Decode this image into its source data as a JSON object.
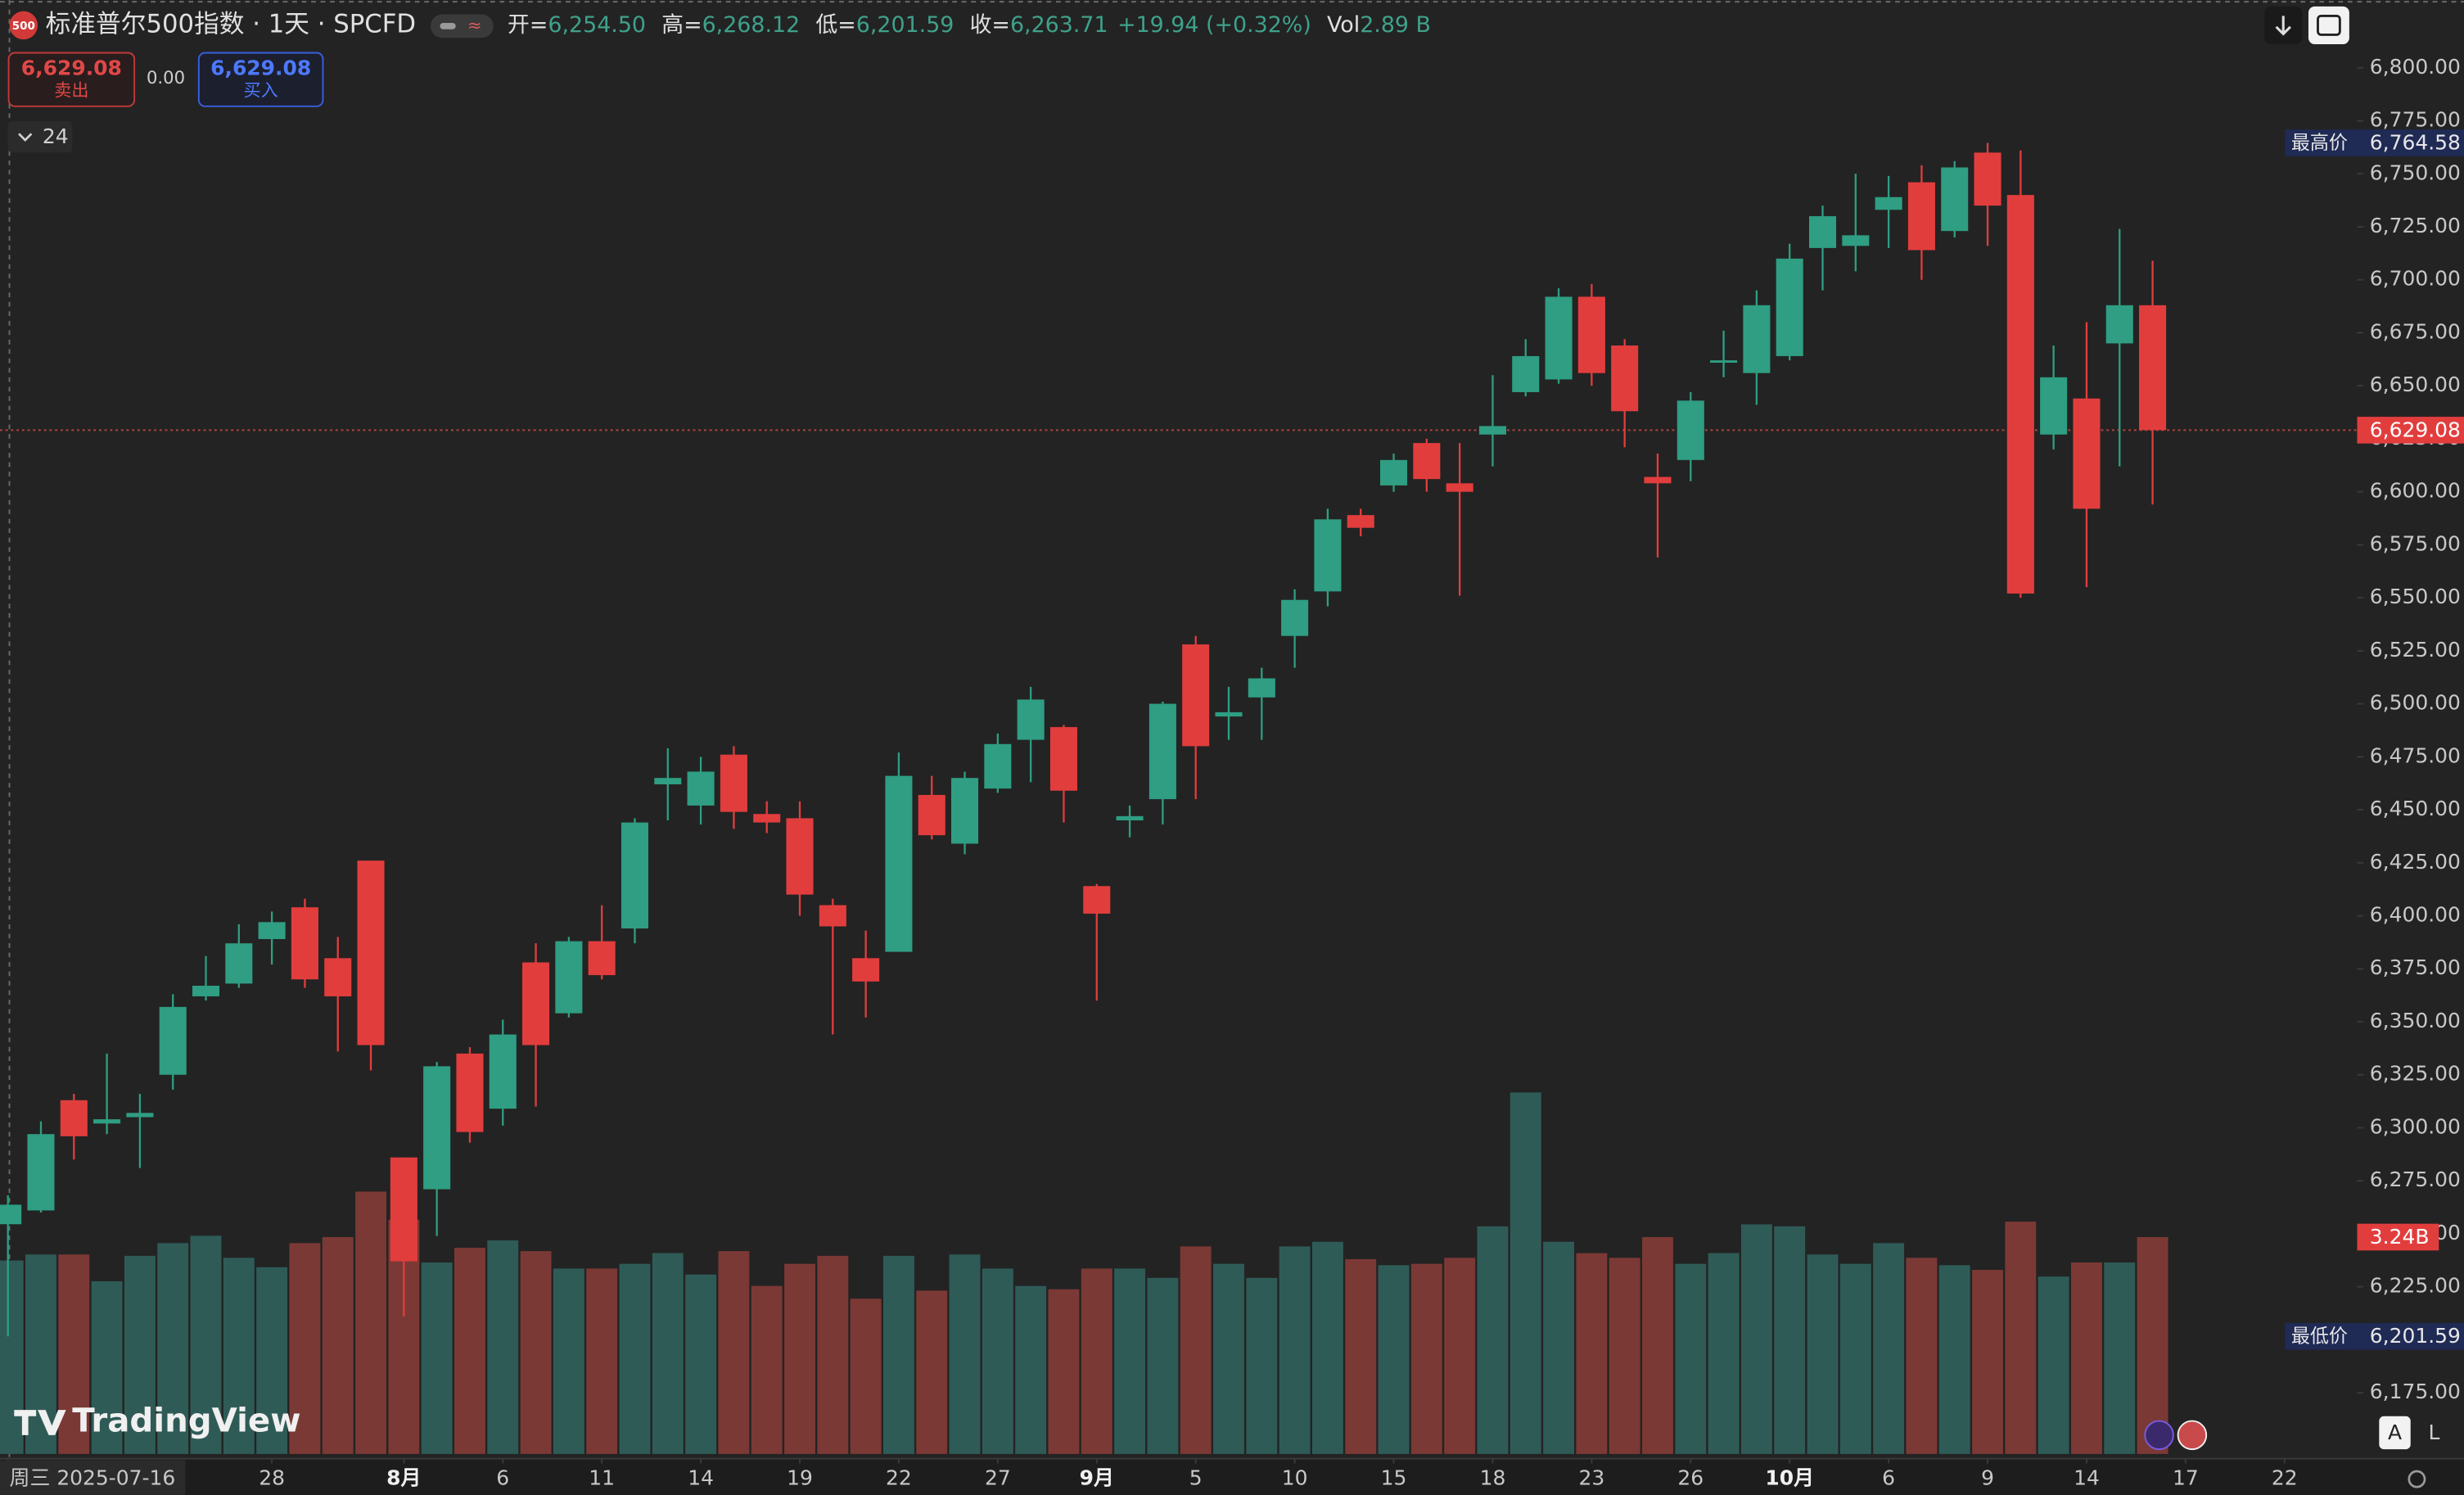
{
  "chart_data": {
    "type": "candlestick",
    "header": {
      "badge": "500",
      "symbol": "标准普尔500指数 · 1天 · SPCFD",
      "fields": [
        {
          "label": "开=",
          "value": "6,254.50"
        },
        {
          "label": "高=",
          "value": "6,268.12"
        },
        {
          "label": "低=",
          "value": "6,201.59"
        },
        {
          "label": "收=",
          "value": "6,263.71"
        }
      ],
      "change": "+19.94 (+0.32%)",
      "vol_label": "Vol",
      "vol_value": "2.89 B"
    },
    "trade": {
      "sell_price": "6,629.08",
      "sell_label": "卖出",
      "spread": "0.00",
      "buy_price": "6,629.08",
      "buy_label": "买入"
    },
    "indicator_count": "24",
    "logo": "TradingView",
    "scale_buttons": [
      "A",
      "L"
    ],
    "up_color": "#2f9e82",
    "down_color": "#e23d3d",
    "up_volume_color": "#2f5b57",
    "down_volume_color": "#7b3935",
    "open": [
      6254.5,
      6261,
      6313,
      6302,
      6305,
      6325,
      6362,
      6368,
      6389,
      6404,
      6380,
      6426,
      6286,
      6271,
      6335,
      6309,
      6378,
      6354,
      6388,
      6394,
      6462,
      6452,
      6476,
      6448,
      6446,
      6405,
      6380,
      6383,
      6457,
      6434,
      6460,
      6483,
      6489,
      6414,
      6445,
      6455,
      6528,
      6494,
      6503,
      6532,
      6553,
      6589,
      6603,
      6623,
      6604,
      6627,
      6647,
      6653,
      6692,
      6669,
      6607,
      6615,
      6661,
      6656,
      6664,
      6715,
      6716,
      6733,
      6746,
      6723,
      6760,
      6740,
      6627,
      6644,
      6670,
      6688
    ],
    "high": [
      6268.12,
      6303,
      6316,
      6335,
      6316,
      6363,
      6381,
      6396,
      6402,
      6408,
      6390,
      6426,
      6286,
      6331,
      6338,
      6351,
      6387,
      6390,
      6405,
      6446,
      6479,
      6475,
      6480,
      6454,
      6454,
      6408,
      6393,
      6477,
      6466,
      6468,
      6486,
      6508,
      6490,
      6415,
      6452,
      6501,
      6532,
      6508,
      6517,
      6554,
      6592,
      6592,
      6618,
      6625,
      6623,
      6655,
      6672,
      6696,
      6698,
      6672,
      6618,
      6647,
      6676,
      6695,
      6717,
      6735,
      6750,
      6749,
      6754,
      6756,
      6764.58,
      6761,
      6669,
      6680,
      6724,
      6709
    ],
    "low": [
      6201.59,
      6260,
      6285,
      6297,
      6281,
      6318,
      6360,
      6366,
      6377,
      6366,
      6336,
      6327,
      6211,
      6249,
      6293,
      6301,
      6310,
      6352,
      6370,
      6387,
      6445,
      6443,
      6441,
      6439,
      6400,
      6344,
      6352,
      6383,
      6436,
      6429,
      6458,
      6463,
      6444,
      6360,
      6437,
      6443,
      6455,
      6483,
      6483,
      6517,
      6546,
      6579,
      6600,
      6600,
      6551,
      6612,
      6645,
      6651,
      6650,
      6621,
      6569,
      6605,
      6654,
      6641,
      6662,
      6695,
      6704,
      6715,
      6700,
      6720,
      6716,
      6550,
      6620,
      6555,
      6612,
      6594
    ],
    "close": [
      6263.71,
      6297,
      6296,
      6304,
      6307,
      6357,
      6367,
      6387,
      6397,
      6370,
      6362,
      6339,
      6237,
      6329,
      6298,
      6344,
      6339,
      6388,
      6372,
      6444,
      6465,
      6468,
      6449,
      6444,
      6410,
      6395,
      6369,
      6466,
      6438,
      6465,
      6481,
      6502,
      6459,
      6401,
      6447,
      6500,
      6480,
      6496,
      6512,
      6549,
      6587,
      6583,
      6615,
      6606,
      6600,
      6631,
      6664,
      6692,
      6656,
      6638,
      6604,
      6643,
      6662,
      6688,
      6710,
      6730,
      6721,
      6739,
      6714,
      6753,
      6735,
      6552,
      6654,
      6592,
      6688,
      6629.08
    ],
    "volume": {
      "values": [
        2.89,
        2.98,
        2.98,
        2.58,
        2.96,
        3.15,
        3.26,
        2.93,
        2.79,
        3.15,
        3.24,
        3.92,
        3.5,
        2.86,
        3.08,
        3.19,
        3.03,
        2.77,
        2.77,
        2.84,
        3.0,
        2.68,
        3.03,
        2.51,
        2.84,
        2.96,
        2.32,
        2.96,
        2.44,
        2.98,
        2.77,
        2.51,
        2.46,
        2.77,
        2.77,
        2.63,
        3.1,
        2.84,
        2.63,
        3.1,
        3.17,
        2.91,
        2.82,
        2.84,
        2.93,
        3.4,
        5.4,
        3.17,
        3.0,
        2.93,
        3.24,
        2.84,
        3.0,
        3.43,
        3.4,
        2.98,
        2.84,
        3.15,
        2.93,
        2.82,
        2.75,
        3.47,
        2.65,
        2.86,
        2.86,
        3.24
      ],
      "last_label": "3.24B"
    },
    "xlim": [
      -0.24,
      71.2
    ],
    "xticks": [
      {
        "value": 0,
        "label": "周三 2025-07-16"
      },
      {
        "value": 8,
        "label": "28"
      },
      {
        "value": 12,
        "label": "8月"
      },
      {
        "value": 15,
        "label": "6"
      },
      {
        "value": 18,
        "label": "11"
      },
      {
        "value": 21,
        "label": "14"
      },
      {
        "value": 24,
        "label": "19"
      },
      {
        "value": 27,
        "label": "22"
      },
      {
        "value": 30,
        "label": "27"
      },
      {
        "value": 33,
        "label": "9月"
      },
      {
        "value": 36,
        "label": "5"
      },
      {
        "value": 39,
        "label": "10"
      },
      {
        "value": 42,
        "label": "15"
      },
      {
        "value": 45,
        "label": "18"
      },
      {
        "value": 48,
        "label": "23"
      },
      {
        "value": 51,
        "label": "26"
      },
      {
        "value": 54,
        "label": "10月"
      },
      {
        "value": 57,
        "label": "6"
      },
      {
        "value": 60,
        "label": "9"
      },
      {
        "value": 63,
        "label": "14"
      },
      {
        "value": 66,
        "label": "17"
      },
      {
        "value": 69,
        "label": "22"
      }
    ],
    "ylim": [
      6143.9,
      6831.9
    ],
    "yticks": [
      {
        "value": 6175,
        "label": "6,175.00"
      },
      {
        "value": 6200,
        "label": "6,200.00"
      },
      {
        "value": 6225,
        "label": "6,225.00"
      },
      {
        "value": 6250,
        "label": "6,250.00"
      },
      {
        "value": 6275,
        "label": "6,275.00"
      },
      {
        "value": 6300,
        "label": "6,300.00"
      },
      {
        "value": 6325,
        "label": "6,325.00"
      },
      {
        "value": 6350,
        "label": "6,350.00"
      },
      {
        "value": 6375,
        "label": "6,375.00"
      },
      {
        "value": 6400,
        "label": "6,400.00"
      },
      {
        "value": 6425,
        "label": "6,425.00"
      },
      {
        "value": 6450,
        "label": "6,450.00"
      },
      {
        "value": 6475,
        "label": "6,475.00"
      },
      {
        "value": 6500,
        "label": "6,500.00"
      },
      {
        "value": 6525,
        "label": "6,525.00"
      },
      {
        "value": 6550,
        "label": "6,550.00"
      },
      {
        "value": 6575,
        "label": "6,575.00"
      },
      {
        "value": 6600,
        "label": "6,600.00"
      },
      {
        "value": 6625,
        "label": "6,625.00"
      },
      {
        "value": 6650,
        "label": "6,650.00"
      },
      {
        "value": 6675,
        "label": "6,675.00"
      },
      {
        "value": 6700,
        "label": "6,700.00"
      },
      {
        "value": 6725,
        "label": "6,725.00"
      },
      {
        "value": 6750,
        "label": "6,750.00"
      },
      {
        "value": 6775,
        "label": "6,775.00"
      },
      {
        "value": 6800,
        "label": "6,800.00"
      }
    ],
    "grid": false,
    "high_marker": {
      "label": "最高价",
      "value": 6764.58,
      "value_label": "6,764.58"
    },
    "low_marker": {
      "label": "最低价",
      "value": 6201.59,
      "value_label": "6,201.59"
    },
    "last_price": {
      "value": 6629.08,
      "value_label": "6,629.08"
    }
  }
}
